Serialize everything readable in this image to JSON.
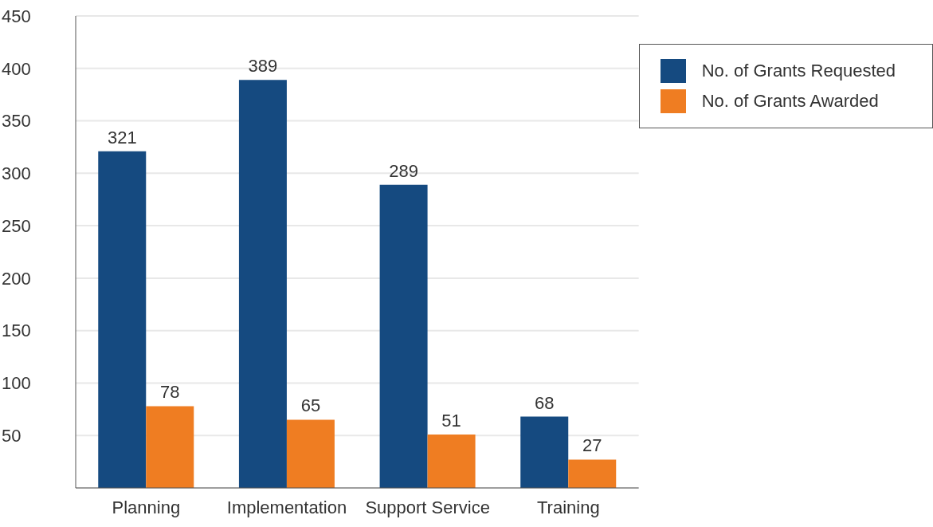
{
  "chart_data": {
    "type": "bar",
    "categories": [
      "Planning",
      "Implementation",
      "Support Service",
      "Training"
    ],
    "series": [
      {
        "name": "No. of Grants Requested",
        "color": "#154a80",
        "values": [
          321,
          389,
          289,
          68
        ]
      },
      {
        "name": "No. of Grants Awarded",
        "color": "#ef7d22",
        "values": [
          78,
          65,
          51,
          27
        ]
      }
    ],
    "ylim": [
      0,
      450
    ],
    "yticks": [
      50,
      100,
      150,
      200,
      250,
      300,
      350,
      400,
      450
    ],
    "grid": "y",
    "legend": "top right",
    "data_labels": true
  }
}
